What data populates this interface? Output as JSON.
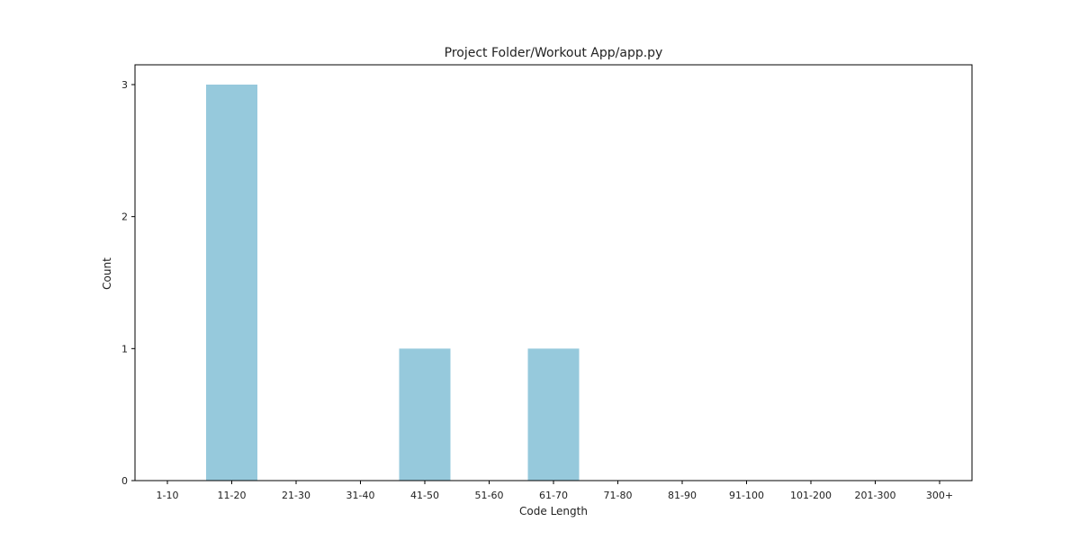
{
  "chart_data": {
    "type": "bar",
    "title": "Project Folder/Workout App/app.py",
    "xlabel": "Code Length",
    "ylabel": "Count",
    "categories": [
      "1-10",
      "11-20",
      "21-30",
      "31-40",
      "41-50",
      "51-60",
      "61-70",
      "71-80",
      "81-90",
      "91-100",
      "101-200",
      "201-300",
      "300+"
    ],
    "values": [
      0,
      3,
      0,
      0,
      1,
      0,
      1,
      0,
      0,
      0,
      0,
      0,
      0
    ],
    "ylim": [
      0,
      3.15
    ],
    "yticks": [
      0,
      1,
      2,
      3
    ],
    "bar_color": "#96c9dc",
    "grid": false
  }
}
